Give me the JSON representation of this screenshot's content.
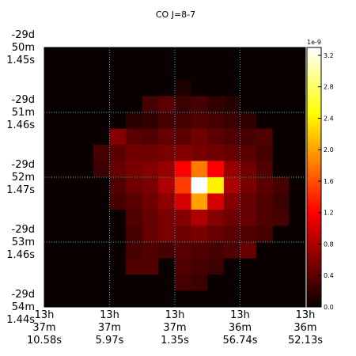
{
  "chart_data": {
    "type": "heatmap",
    "title": "CO J=8-7",
    "colormap": "hot",
    "xlabel": "",
    "ylabel": "",
    "grid": true,
    "grid_color": "#00bcd4",
    "x_ticks": [
      {
        "lines": [
          "13h",
          "37m",
          "10.58s"
        ]
      },
      {
        "lines": [
          "13h",
          "37m",
          "5.97s"
        ]
      },
      {
        "lines": [
          "13h",
          "37m",
          "1.35s"
        ]
      },
      {
        "lines": [
          "13h",
          "36m",
          "56.74s"
        ]
      },
      {
        "lines": [
          "13h",
          "36m",
          "52.13s"
        ]
      }
    ],
    "y_ticks": [
      {
        "lines": [
          "-29d",
          "50m",
          "1.45s"
        ]
      },
      {
        "lines": [
          "-29d",
          "51m",
          "1.46s"
        ]
      },
      {
        "lines": [
          "-29d",
          "52m",
          "1.47s"
        ]
      },
      {
        "lines": [
          "-29d",
          "53m",
          "1.46s"
        ]
      },
      {
        "lines": [
          "-29d",
          "54m",
          "1.44s"
        ]
      }
    ],
    "colorbar": {
      "exponent_label": "1e-9",
      "range": [
        0.0,
        3.3
      ],
      "ticks": [
        "0.0",
        "0.4",
        "0.8",
        "1.2",
        "1.6",
        "2.0",
        "2.4",
        "2.8",
        "3.2"
      ],
      "tick_values": [
        0.0,
        0.4,
        0.8,
        1.2,
        1.6,
        2.0,
        2.4,
        2.8,
        3.2
      ]
    },
    "grid_size": [
      16,
      16
    ],
    "values": [
      [
        0,
        0,
        0,
        0,
        0,
        0,
        0,
        0,
        0,
        0,
        0,
        0,
        0,
        0,
        0,
        0
      ],
      [
        0,
        0,
        0,
        0,
        0,
        0,
        0,
        0,
        0,
        0,
        0,
        0,
        0,
        0,
        0,
        0
      ],
      [
        0,
        0,
        0,
        0,
        0,
        0,
        0,
        0,
        0.1,
        0,
        0,
        0,
        0,
        0,
        0,
        0
      ],
      [
        0,
        0,
        0,
        0,
        0,
        0,
        0.3,
        0.4,
        0.25,
        0.3,
        0.2,
        0.15,
        0,
        0,
        0,
        0
      ],
      [
        0,
        0,
        0,
        0,
        0,
        0.15,
        0.2,
        0.3,
        0.3,
        0.35,
        0.3,
        0.25,
        0.2,
        0,
        0,
        0
      ],
      [
        0,
        0,
        0,
        0,
        0.6,
        0.4,
        0.35,
        0.45,
        0.4,
        0.5,
        0.4,
        0.35,
        0.3,
        0.35,
        0,
        0
      ],
      [
        0,
        0,
        0,
        0.3,
        0.4,
        0.5,
        0.5,
        0.55,
        0.6,
        0.55,
        0.5,
        0.45,
        0.4,
        0.3,
        0,
        0
      ],
      [
        0,
        0,
        0,
        0.25,
        0.45,
        0.55,
        0.6,
        0.7,
        1.2,
        1.8,
        1.2,
        0.7,
        0.5,
        0.35,
        0,
        0
      ],
      [
        0,
        0,
        0,
        0,
        0.35,
        0.5,
        0.55,
        0.8,
        1.5,
        3.3,
        2.4,
        0.8,
        0.55,
        0.4,
        0.3,
        0
      ],
      [
        0,
        0,
        0,
        0,
        0.3,
        0.4,
        0.5,
        0.65,
        1.0,
        2.0,
        1.0,
        0.6,
        0.45,
        0.35,
        0.25,
        0
      ],
      [
        0,
        0,
        0,
        0,
        0,
        0.35,
        0.45,
        0.55,
        0.6,
        0.8,
        0.6,
        0.5,
        0.45,
        0.35,
        0.3,
        0
      ],
      [
        0,
        0,
        0,
        0,
        0,
        0.3,
        0.45,
        0.55,
        0.5,
        0.55,
        0.45,
        0.4,
        0.35,
        0.3,
        0,
        0
      ],
      [
        0,
        0,
        0,
        0,
        0,
        0.3,
        0.35,
        0.3,
        0.4,
        0.35,
        0.3,
        0.35,
        0.45,
        0,
        0,
        0
      ],
      [
        0,
        0,
        0,
        0,
        0,
        0.35,
        0.35,
        0,
        0.35,
        0.3,
        0.25,
        0,
        0,
        0,
        0,
        0
      ],
      [
        0,
        0,
        0,
        0,
        0,
        0,
        0,
        0,
        0.3,
        0.25,
        0,
        0,
        0,
        0,
        0,
        0
      ],
      [
        0,
        0,
        0,
        0,
        0,
        0,
        0,
        0,
        0,
        0,
        0,
        0,
        0,
        0,
        0,
        0
      ]
    ]
  }
}
